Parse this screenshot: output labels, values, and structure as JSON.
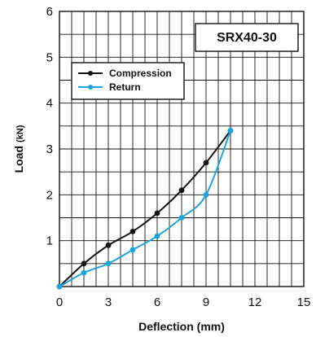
{
  "chart_data": {
    "type": "line",
    "title": "SRX40-30",
    "xlabel": "Deflection (mm)",
    "ylabel_main": "Load",
    "ylabel_unit": "(kN)",
    "xlim": [
      0,
      15
    ],
    "ylim": [
      0,
      6
    ],
    "x_ticks": [
      0,
      3,
      6,
      9,
      12,
      15
    ],
    "y_ticks": [
      0,
      1,
      2,
      3,
      4,
      5,
      6
    ],
    "grid": true,
    "legend_position": "upper-left",
    "series": [
      {
        "name": "Compression",
        "color": "#111111",
        "x": [
          0,
          1.5,
          3,
          4.5,
          6,
          7.5,
          9,
          10.5
        ],
        "y": [
          0,
          0.5,
          0.9,
          1.2,
          1.6,
          2.1,
          2.7,
          3.4
        ]
      },
      {
        "name": "Return",
        "color": "#1aa3df",
        "x": [
          0,
          1.5,
          3,
          4.5,
          6,
          7.5,
          9,
          10.5
        ],
        "y": [
          0,
          0.3,
          0.5,
          0.8,
          1.1,
          1.5,
          2.0,
          3.4
        ]
      }
    ]
  }
}
